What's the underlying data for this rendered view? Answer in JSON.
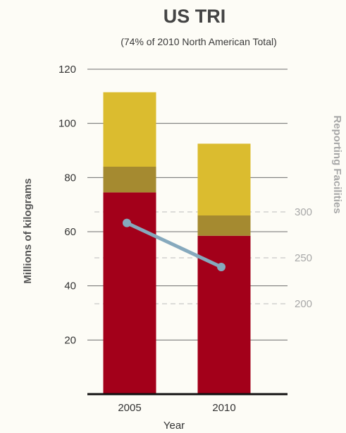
{
  "chart_data": {
    "type": "bar",
    "stacked": true,
    "title": "US TRI",
    "subtitle": "(74% of 2010 North American Total)",
    "xlabel": "Year",
    "ylabel": "Millions of kilograms",
    "ylabel_right": "Reporting Facilities",
    "categories": [
      "2005",
      "2010"
    ],
    "ylim": [
      0,
      120
    ],
    "y_ticks": [
      20,
      40,
      60,
      80,
      100,
      120
    ],
    "series": [
      {
        "color": "#a3001a",
        "values": [
          74.5,
          58.5
        ]
      },
      {
        "color": "#a58a30",
        "values": [
          9.5,
          7.5
        ]
      },
      {
        "color": "#dbbc2f",
        "values": [
          27.5,
          26.5
        ]
      }
    ],
    "line_series": {
      "axis": "right",
      "color": "#86a9bd",
      "values": [
        288,
        240
      ]
    },
    "y2_ticks": [
      200,
      250,
      300
    ],
    "grid": true
  }
}
